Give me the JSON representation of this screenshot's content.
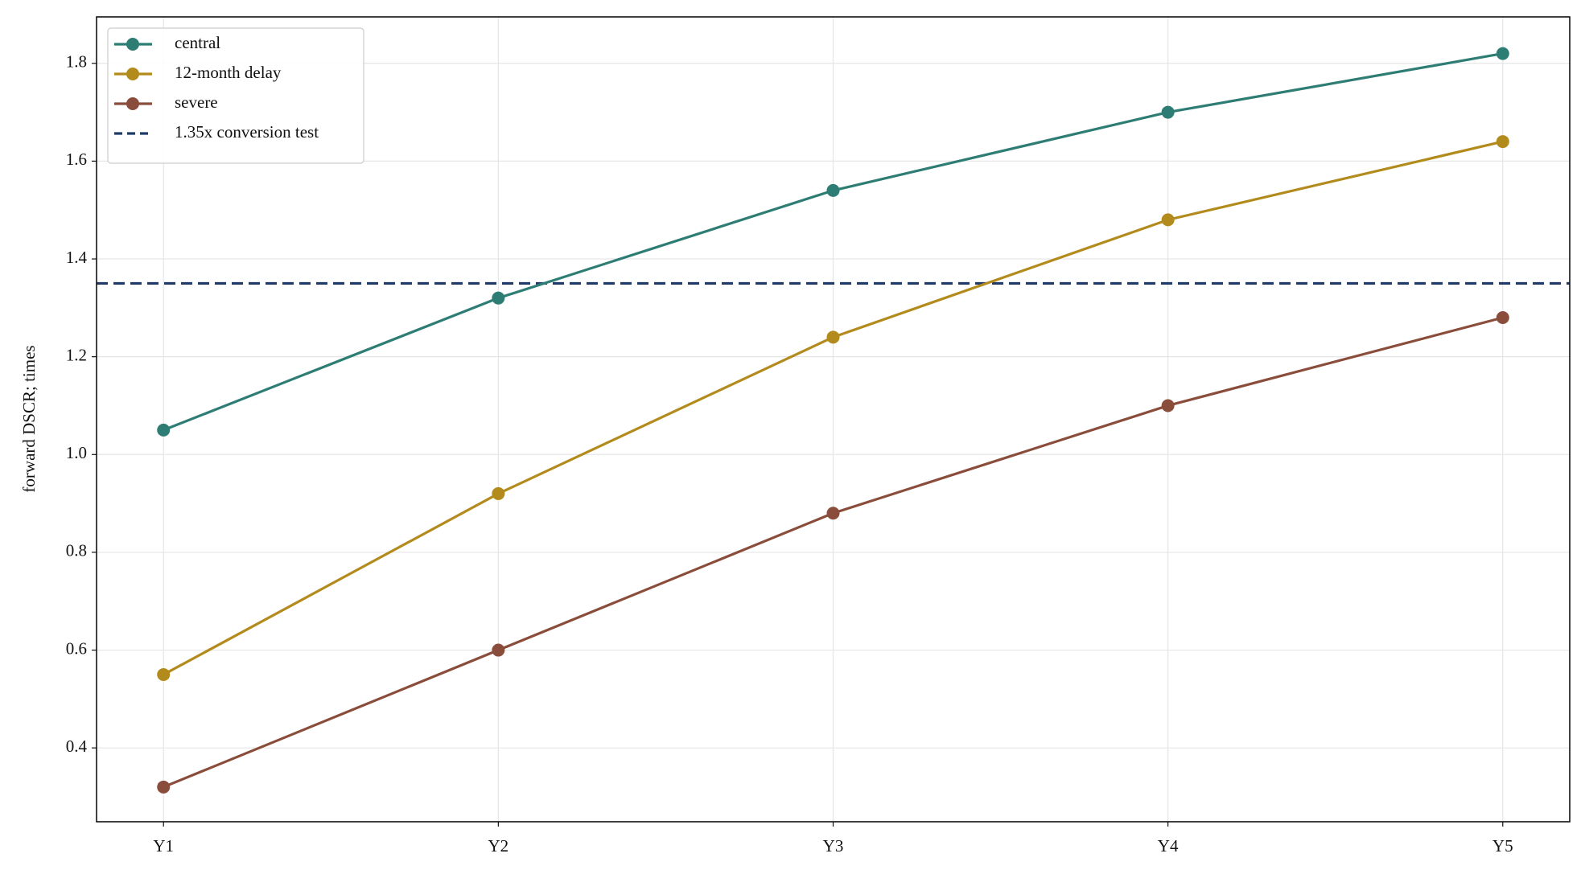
{
  "chart_data": {
    "type": "line",
    "y_label": "forward DSCR; times",
    "categories": [
      "Y1",
      "Y2",
      "Y3",
      "Y4",
      "Y5"
    ],
    "series": [
      {
        "name": "central",
        "color": "#2e7d74",
        "values": [
          1.05,
          1.32,
          1.54,
          1.7,
          1.82
        ]
      },
      {
        "name": "12-month delay",
        "color": "#b38b1d",
        "values": [
          0.55,
          0.92,
          1.24,
          1.48,
          1.64
        ]
      },
      {
        "name": "severe",
        "color": "#8b4d3b",
        "values": [
          0.32,
          0.6,
          0.88,
          1.1,
          1.28
        ]
      }
    ],
    "reference_line": {
      "name": "1.35x conversion test",
      "value": 1.35,
      "color": "#1f3a68"
    },
    "ylim": [
      0.249,
      1.895
    ],
    "yticks": [
      {
        "value": 0.4,
        "label": "0.4"
      },
      {
        "value": 0.6,
        "label": "0.6"
      },
      {
        "value": 0.8,
        "label": "0.8"
      },
      {
        "value": 1.0,
        "label": "1.0"
      },
      {
        "value": 1.2,
        "label": "1.2"
      },
      {
        "value": 1.4,
        "label": "1.4"
      },
      {
        "value": 1.6,
        "label": "1.6"
      },
      {
        "value": 1.8,
        "label": "1.8"
      }
    ],
    "grid": true,
    "legend": "upper-left"
  }
}
